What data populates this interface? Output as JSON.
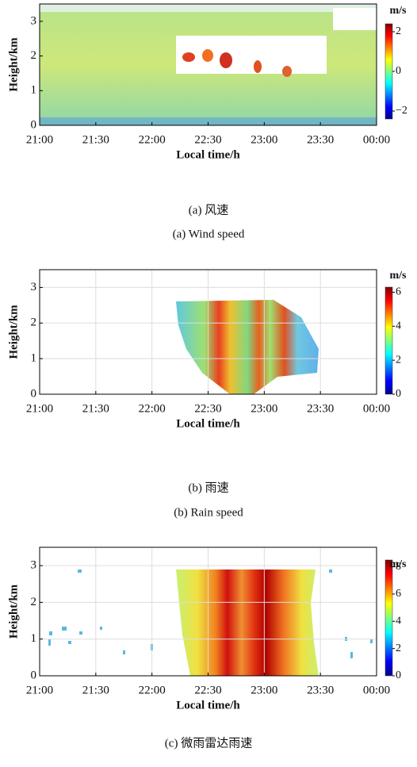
{
  "charts": [
    {
      "type": "heatmap",
      "xlabel": "Local time/h",
      "ylabel": "Height/km",
      "xticks": [
        "21:00",
        "21:30",
        "22:00",
        "22:30",
        "23:00",
        "23:30",
        "00:00"
      ],
      "ylim": [
        0,
        3.5
      ],
      "yticks": [
        0,
        1,
        2,
        3
      ],
      "grid": false,
      "colorbar": {
        "label": "m/s",
        "lim": [
          -2.4,
          2.4
        ],
        "ticks": [
          {
            "value": -2,
            "label": "−2"
          },
          0,
          2
        ]
      },
      "caption_zh": "(a) 风速",
      "caption_en": "(a) Wind speed"
    },
    {
      "type": "heatmap",
      "xlabel": "Local time/h",
      "ylabel": "Height/km",
      "xticks": [
        "21:00",
        "21:30",
        "22:00",
        "22:30",
        "23:00",
        "23:30",
        "00:00"
      ],
      "ylim": [
        0,
        3.5
      ],
      "yticks": [
        0,
        1,
        2,
        3
      ],
      "grid": true,
      "colorbar": {
        "label": "m/s",
        "lim": [
          0,
          6.3
        ],
        "ticks": [
          0,
          2,
          4,
          6
        ]
      },
      "caption_zh": "(b) 雨速",
      "caption_en": "(b) Rain speed"
    },
    {
      "type": "heatmap",
      "xlabel": "Local time/h",
      "ylabel": "Height/km",
      "xticks": [
        "21:00",
        "21:30",
        "22:00",
        "22:30",
        "23:00",
        "23:30",
        "00:00"
      ],
      "ylim": [
        0,
        3.5
      ],
      "yticks": [
        0,
        1,
        2,
        3
      ],
      "grid": true,
      "colorbar": {
        "label": "m/s",
        "lim": [
          0,
          8.5
        ],
        "ticks": [
          0,
          2,
          4,
          6,
          8
        ]
      },
      "caption_zh": "(c) 微雨雷达雨速"
    }
  ]
}
